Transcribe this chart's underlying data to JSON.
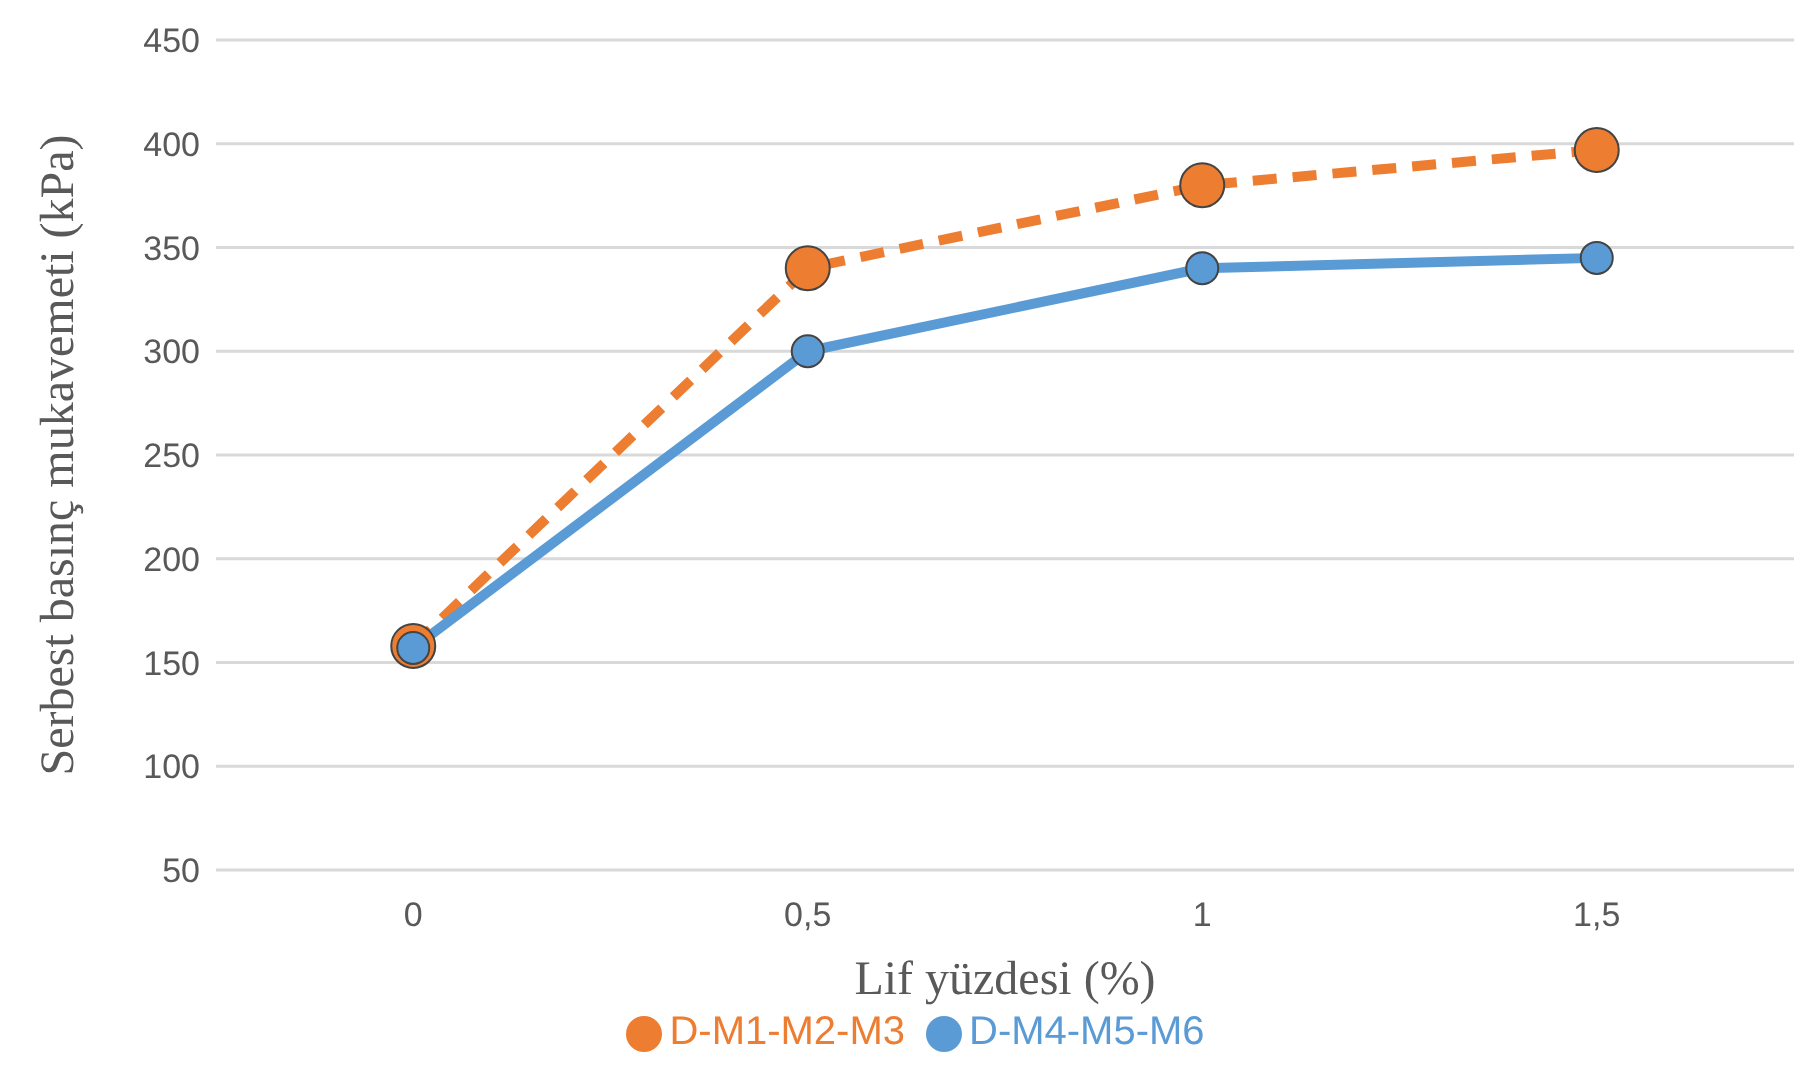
{
  "chart_data": {
    "type": "line",
    "xlabel": "Lif yüzdesi (%)",
    "ylabel": "Serbest basınç mukavemeti (kPa)",
    "categories": [
      "0",
      "0,5",
      "1",
      "1,5"
    ],
    "series": [
      {
        "name": "D-M1-M2-M3",
        "color": "#ed7d31",
        "line_style": "dashed",
        "values": [
          158,
          340,
          380,
          397
        ]
      },
      {
        "name": "D-M4-M5-M6",
        "color": "#5b9bd5",
        "line_style": "solid",
        "values": [
          157,
          300,
          340,
          345
        ]
      }
    ],
    "ylim": [
      50,
      450
    ],
    "yticks": [
      50,
      100,
      150,
      200,
      250,
      300,
      350,
      400,
      450
    ],
    "grid": "y",
    "legend": "bottom",
    "marker": "circle"
  }
}
